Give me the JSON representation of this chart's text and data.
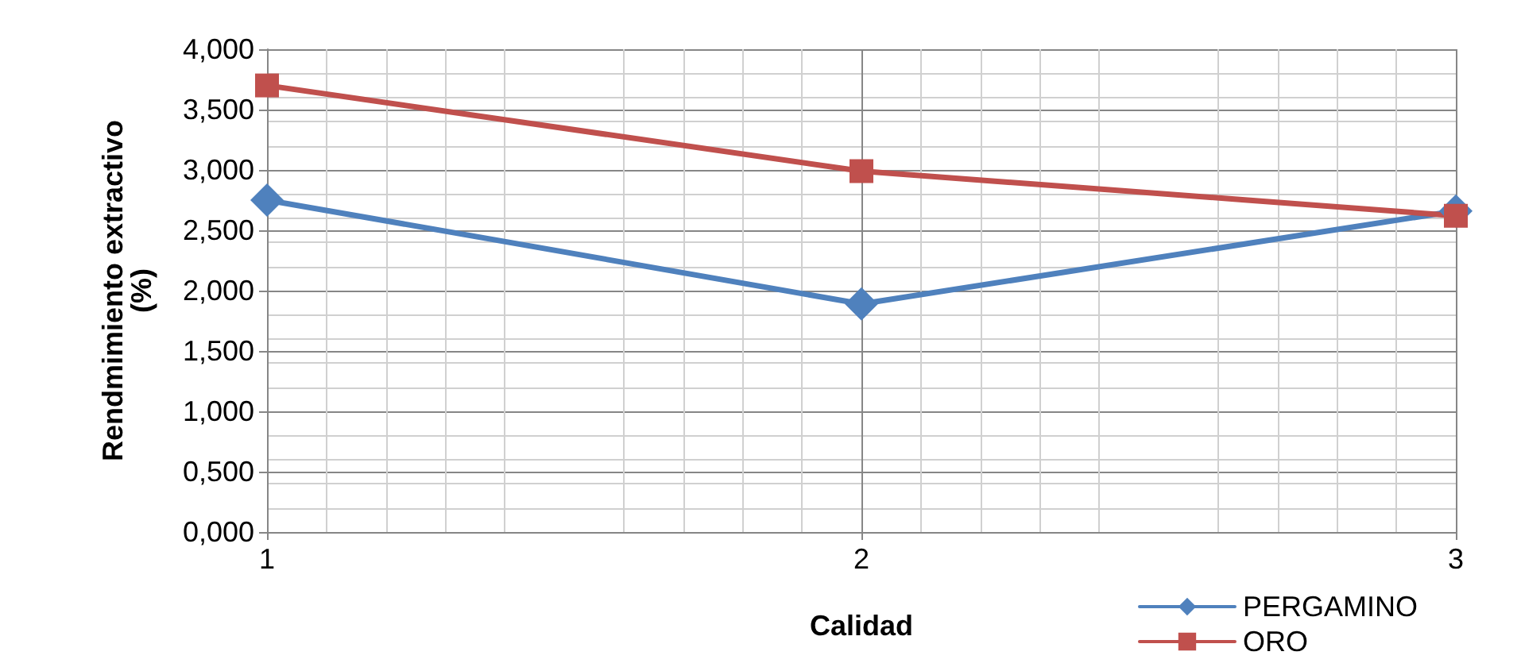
{
  "chart_data": {
    "type": "line",
    "xlabel": "Calidad",
    "ylabel": "Rendmimiento extractivo\n(%)",
    "x": [
      1,
      2,
      3
    ],
    "series": [
      {
        "name": "PERGAMINO",
        "color": "#4f81bd",
        "marker": "diamond",
        "values": [
          2.75,
          1.89,
          2.66
        ]
      },
      {
        "name": "ORO",
        "color": "#c0504d",
        "marker": "square",
        "values": [
          3.7,
          2.99,
          2.62
        ]
      }
    ],
    "xlim": [
      1,
      3
    ],
    "xticks": [
      1,
      2,
      3
    ],
    "ylim": [
      0,
      4
    ],
    "yticks": [
      {
        "value": 0,
        "label": "0,000"
      },
      {
        "value": 0.5,
        "label": "0,500"
      },
      {
        "value": 1,
        "label": "1,000"
      },
      {
        "value": 1.5,
        "label": "1,500"
      },
      {
        "value": 2,
        "label": "2,000"
      },
      {
        "value": 2.5,
        "label": "2,500"
      },
      {
        "value": 3,
        "label": "3,000"
      },
      {
        "value": 3.5,
        "label": "3,500"
      },
      {
        "value": 4,
        "label": "4,000"
      }
    ],
    "grid": true,
    "legend": "bottom right",
    "line_style": "solid"
  }
}
